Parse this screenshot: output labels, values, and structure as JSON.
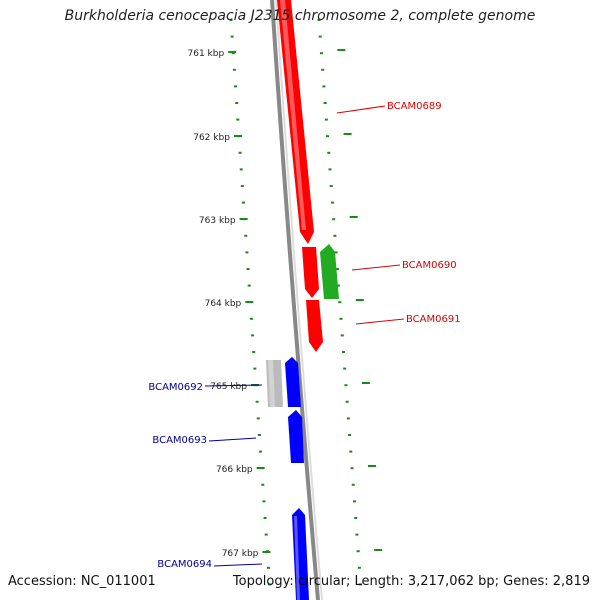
{
  "title": "Burkholderia cenocepacia J2315 chromosome 2, complete genome",
  "footer": {
    "accession": "Accession: NC_011001",
    "topology": "Topology: circular; Length: 3,217,062 bp; Genes: 2,819"
  },
  "colors": {
    "backbone": "#888888",
    "tick": "#1a8a1a",
    "red_gene": "#ff0000",
    "green_gene": "#22aa22",
    "blue_gene": "#0000ff",
    "grey_gene": "#bbbbbb",
    "red_label": "#dd0000",
    "blue_label": "#000099"
  },
  "ticks": [
    {
      "label": "761 kbp"
    },
    {
      "label": "762 kbp"
    },
    {
      "label": "763 kbp"
    },
    {
      "label": "764 kbp"
    },
    {
      "label": "765 kbp"
    },
    {
      "label": "766 kbp"
    },
    {
      "label": "767 kbp"
    }
  ],
  "genes": [
    {
      "name": "BCAM0689",
      "color": "red"
    },
    {
      "name": "BCAM0690",
      "color": "green"
    },
    {
      "name": "BCAM0691",
      "color": "red"
    },
    {
      "name": "BCAM0692",
      "color": "blue"
    },
    {
      "name": "BCAM0693",
      "color": "blue"
    },
    {
      "name": "BCAM0694",
      "color": "blue"
    }
  ]
}
